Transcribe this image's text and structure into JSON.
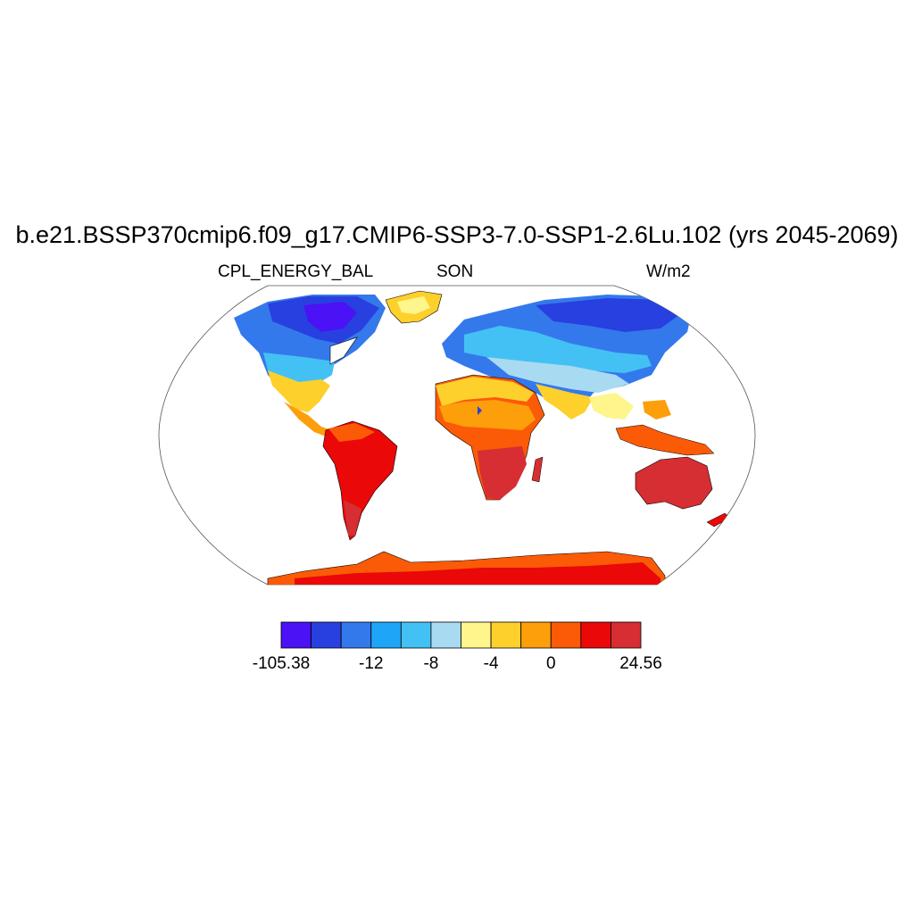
{
  "title": "b.e21.BSSP370cmip6.f09_g17.CMIP6-SSP3-7.0-SSP1-2.6Lu.102 (yrs 2045-2069)",
  "left_subtitle": "CPL_ENERGY_BAL",
  "center_subtitle": "SON",
  "right_subtitle": "W/m2",
  "colorbar": {
    "colors": [
      "#4a12f5",
      "#2840e0",
      "#3479ec",
      "#1ea5f8",
      "#44c1f4",
      "#a8daf2",
      "#fef58c",
      "#fdd02c",
      "#fd9e0b",
      "#fb5a07",
      "#ea0808",
      "#d62e32"
    ],
    "labels": [
      {
        "text": "-105.38",
        "index": 0
      },
      {
        "text": "-12",
        "index": 3
      },
      {
        "text": "-8",
        "index": 5
      },
      {
        "text": "-4",
        "index": 7
      },
      {
        "text": "0",
        "index": 9
      },
      {
        "text": "24.56",
        "index": 12
      }
    ]
  },
  "map_colors": {
    "ocean": "#ffffff",
    "coastline": "#000000"
  }
}
